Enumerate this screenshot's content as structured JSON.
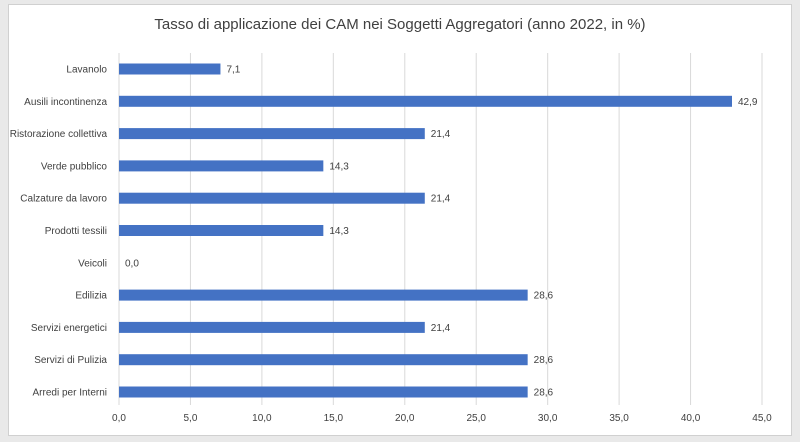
{
  "chart_data": {
    "type": "bar",
    "orientation": "horizontal",
    "title": "Tasso di applicazione dei CAM nei Soggetti Aggregatori (anno 2022, in %)",
    "categories": [
      "Lavanolo",
      "Ausili incontinenza",
      "Ristorazione collettiva",
      "Verde pubblico",
      "Calzature da lavoro",
      "Prodotti tessili",
      "Veicoli",
      "Edilizia",
      "Servizi energetici",
      "Servizi di Pulizia",
      "Arredi per Interni"
    ],
    "values": [
      7.1,
      42.9,
      21.4,
      14.3,
      21.4,
      14.3,
      0.0,
      28.6,
      21.4,
      28.6,
      28.6
    ],
    "value_labels": [
      "7,1",
      "42,9",
      "21,4",
      "14,3",
      "21,4",
      "14,3",
      "0,0",
      "28,6",
      "21,4",
      "28,6",
      "28,6"
    ],
    "xticks": [
      0,
      5,
      10,
      15,
      20,
      25,
      30,
      35,
      40,
      45
    ],
    "xtick_labels": [
      "0,0",
      "5,0",
      "10,0",
      "15,0",
      "20,0",
      "25,0",
      "30,0",
      "35,0",
      "40,0",
      "45,0"
    ],
    "xlim": [
      0,
      45
    ],
    "xlabel": "",
    "ylabel": "",
    "grid": "vertical",
    "legend": "none",
    "bar_color": "#4472c4",
    "grid_color": "#d9d9d9"
  }
}
